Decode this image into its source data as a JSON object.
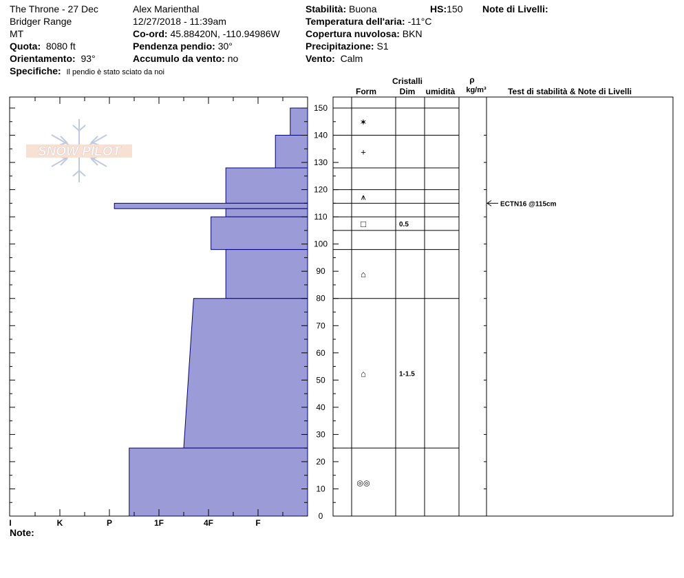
{
  "header": {
    "location": "The Throne - 27 Dec",
    "range": "Bridger Range",
    "state": "MT",
    "elevation_label": "Quota:",
    "elevation": "8080 ft",
    "aspect_label": "Orientamento:",
    "aspect": "93°",
    "specifics_label": "Specifiche:",
    "specifics": "Il pendio è stato sciato da noi",
    "observer": "Alex Marienthal",
    "datetime": "12/27/2018 - 11:39am",
    "coord_label": "Co-ord:",
    "coord": "45.88420N, -110.94986W",
    "slope_label": "Pendenza pendio:",
    "slope": "30°",
    "wind_loading_label": "Accumulo da vento:",
    "wind_loading": "no",
    "stability_label": "Stabilità:",
    "stability": "Buona",
    "air_temp_label": "Temperatura dell'aria:",
    "air_temp": "-11°C",
    "cloud_label": "Copertura nuvolosa:",
    "cloud": "BKN",
    "precip_label": "Precipitazione:",
    "precip": "S1",
    "wind_label": "Vento:",
    "wind": "Calm",
    "hs_label": "HS:",
    "hs": "150",
    "layer_notes_label": "Note di Livelli:"
  },
  "notes_label": "Note:",
  "logo_text": "SNOW PILOT",
  "table_headers": {
    "crystals": "Cristalli",
    "form": "Form",
    "dim": "Dim",
    "moisture": "umidità",
    "rho": "ρ",
    "density_unit": "kg/m³",
    "tests": "Test di stabilità & Note di Livelli"
  },
  "colors": {
    "layer_fill": "#9b9bd8",
    "layer_stroke": "#000080"
  },
  "chart_data": {
    "type": "bar",
    "title": "",
    "ylim": [
      0,
      150
    ],
    "y_ticks": [
      0,
      10,
      20,
      30,
      40,
      50,
      60,
      70,
      80,
      90,
      100,
      110,
      120,
      130,
      140,
      150
    ],
    "hardness_scale": [
      "I",
      "K",
      "P",
      "1F",
      "4F",
      "F"
    ],
    "hardness_index": {
      "F": 1,
      "4F": 2,
      "1F": 3,
      "P": 4,
      "K": 5,
      "I": 6
    },
    "hardness_profile": [
      {
        "bottom": 140,
        "top": 150,
        "hardness": 0.35
      },
      {
        "bottom": 128,
        "top": 140,
        "hardness": 0.65
      },
      {
        "bottom": 115,
        "top": 128,
        "hardness": 1.65
      },
      {
        "bottom": 113,
        "top": 115,
        "hardness": 3.9
      },
      {
        "bottom": 110,
        "top": 113,
        "hardness": 1.65
      },
      {
        "bottom": 98,
        "top": 110,
        "hardness": 1.95
      },
      {
        "bottom": 80,
        "top": 98,
        "hardness": 1.65
      },
      {
        "bottom": 25,
        "top": 80,
        "hardness_top": 2.3,
        "hardness_bottom": 2.5
      },
      {
        "bottom": 0,
        "top": 25,
        "hardness": 3.6
      }
    ],
    "layer_boundaries": [
      150,
      140,
      128,
      120,
      115,
      110,
      105,
      98,
      80,
      25,
      0
    ],
    "layers": [
      {
        "top": 150,
        "bottom": 140,
        "form_icon": "star",
        "size": ""
      },
      {
        "top": 140,
        "bottom": 128,
        "form_icon": "plus",
        "size": ""
      },
      {
        "top": 128,
        "bottom": 120,
        "form_icon": "",
        "size": ""
      },
      {
        "top": 120,
        "bottom": 115,
        "form_icon": "surface-hoar",
        "size": ""
      },
      {
        "top": 115,
        "bottom": 110,
        "form_icon": "",
        "size": ""
      },
      {
        "top": 110,
        "bottom": 105,
        "form_icon": "square",
        "size": "0.5"
      },
      {
        "top": 105,
        "bottom": 98,
        "form_icon": "",
        "size": ""
      },
      {
        "top": 98,
        "bottom": 80,
        "form_icon": "faceted-rounded",
        "size": ""
      },
      {
        "top": 80,
        "bottom": 25,
        "form_icon": "faceted-rounded",
        "size": "1-1.5"
      },
      {
        "top": 25,
        "bottom": 0,
        "form_icon": "melt-forms",
        "size": ""
      }
    ],
    "tests": [
      {
        "height": 115,
        "label": "ECTN16 @115cm"
      }
    ]
  }
}
